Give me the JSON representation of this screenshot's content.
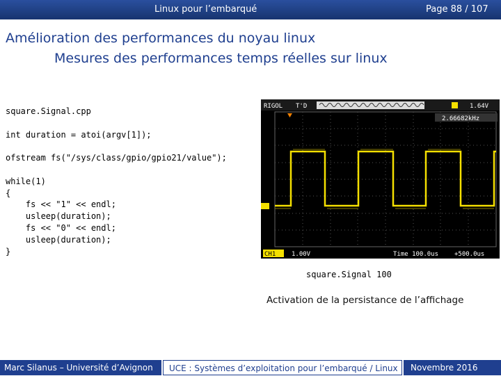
{
  "header": {
    "left": "Linux pour l’embarqué",
    "page": "Page 88 / 107"
  },
  "title": {
    "line1": "Amélioration des performances du noyau linux",
    "line2": "Mesures des performances temps réelles sur linux"
  },
  "code": {
    "blocks": [
      [
        "square.Signal.cpp"
      ],
      [
        "int duration = atoi(argv[1]);"
      ],
      [
        "ofstream fs(\"/sys/class/gpio/gpio21/value\");"
      ],
      [
        "while(1)",
        "{",
        "    fs << \"1\" << endl;",
        "    usleep(duration);",
        "    fs << \"0\" << endl;",
        "    usleep(duration);",
        "}"
      ]
    ]
  },
  "scope": {
    "brand": "RIGOL",
    "mode": "T'D",
    "trigger_level": "1.64V",
    "frequency": "2.66682kHz",
    "channel": "CH1",
    "volts_div": "1.00V",
    "timebase": "Time 100.0us",
    "offset": "+500.0us"
  },
  "caption": {
    "command": "square.Signal 100",
    "description": "Activation de la persistance de l’affichage"
  },
  "footer": {
    "author": "Marc Silanus – Université d’Avignon",
    "course": "UCE : Systèmes d’exploitation pour l’embarqué / Linux",
    "date": "Novembre 2016"
  }
}
